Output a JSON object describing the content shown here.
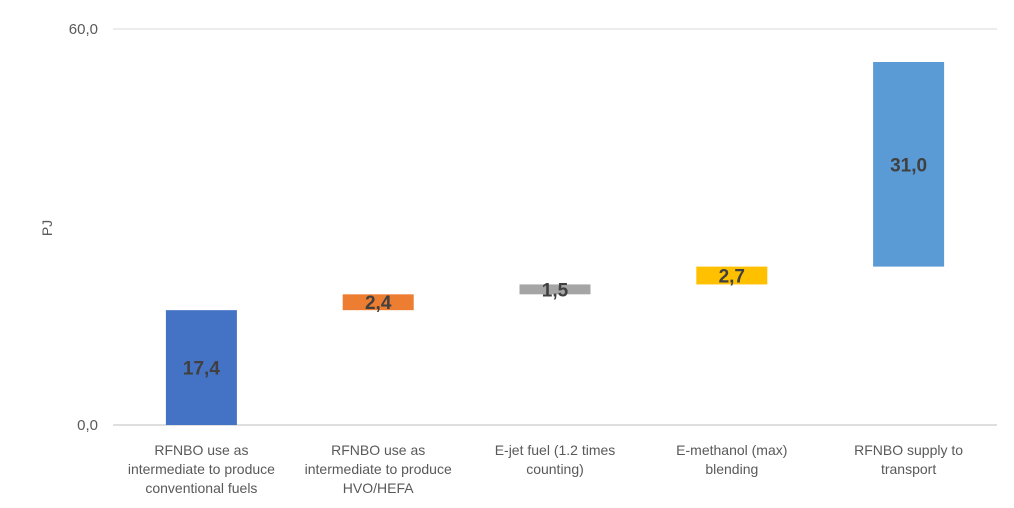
{
  "chart_data": {
    "type": "bar",
    "subtype": "waterfall",
    "title": "",
    "xlabel": "",
    "ylabel": "PJ",
    "ylim": [
      0,
      60
    ],
    "yticks": [
      "0,0",
      "60,0"
    ],
    "grid": true,
    "legend": "none",
    "categories": [
      [
        "RFNBO use as",
        "intermediate to produce",
        "conventional fuels"
      ],
      [
        "RFNBO use as",
        "intermediate to produce",
        "HVO/HEFA"
      ],
      [
        "E-jet fuel (1.2 times",
        "counting)"
      ],
      [
        "E-methanol (max)",
        "blending"
      ],
      [
        "RFNBO supply to",
        "transport"
      ]
    ],
    "bars": [
      {
        "start": 0,
        "end": 17.4,
        "label": "17,4",
        "color": "#4472c4"
      },
      {
        "start": 17.4,
        "end": 19.8,
        "label": "2,4",
        "color": "#ed7d31"
      },
      {
        "start": 19.8,
        "end": 21.3,
        "label": "1,5",
        "color": "#a5a5a5"
      },
      {
        "start": 21.3,
        "end": 24.0,
        "label": "2,7",
        "color": "#ffc000"
      },
      {
        "start": 24.0,
        "end": 55.0,
        "label": "31,0",
        "color": "#5b9bd5"
      }
    ]
  }
}
